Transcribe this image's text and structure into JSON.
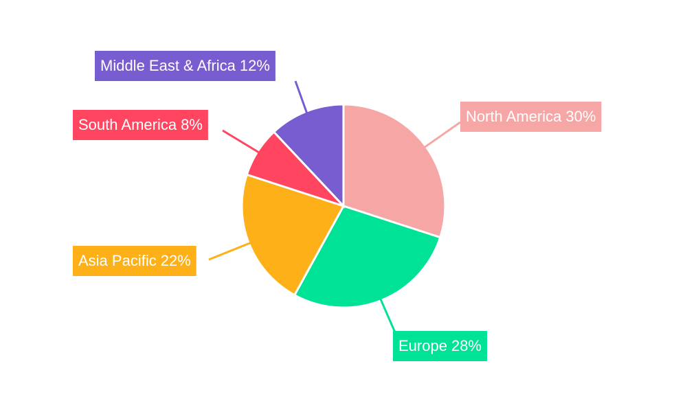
{
  "chart_data": {
    "type": "pie",
    "categories": [
      "North America",
      "Europe",
      "Asia Pacific",
      "South America",
      "Middle East & Africa"
    ],
    "values": [
      30,
      28,
      22,
      8,
      12
    ],
    "value_labels": [
      "30%",
      "28%",
      "22%",
      "8%",
      "12%"
    ],
    "colors": [
      "#f7a6a6",
      "#00e396",
      "#feb019",
      "#ff4560",
      "#775dd0"
    ]
  }
}
